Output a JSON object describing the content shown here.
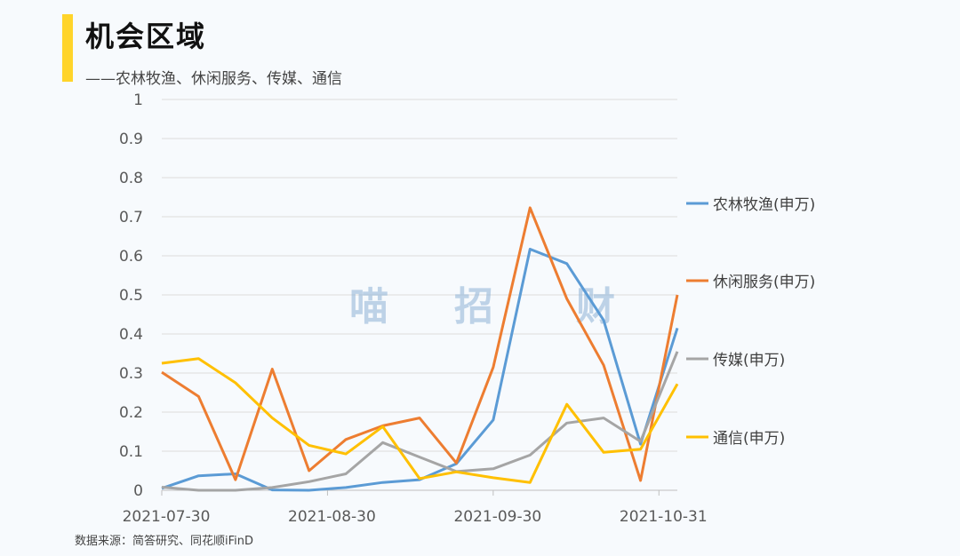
{
  "header": {
    "title": "机会区域",
    "subtitle": "——农林牧渔、休闲服务、传媒、通信"
  },
  "footer": {
    "source": "数据来源：简答研究、同花顺iFinD"
  },
  "watermark": [
    "喵",
    "招",
    "财"
  ],
  "chart_data": {
    "type": "line",
    "title": "",
    "xlabel": "",
    "ylabel": "",
    "ylim": [
      0,
      1
    ],
    "y_ticks": [
      "0",
      "0.1",
      "0.2",
      "0.3",
      "0.4",
      "0.5",
      "0.6",
      "0.7",
      "0.8",
      "0.9",
      "1"
    ],
    "x_tick_labels": [
      "2021-07-30",
      "2021-08-30",
      "2021-09-30",
      "2021-10-31"
    ],
    "x_tick_indices": [
      0,
      4.5,
      9,
      13.5
    ],
    "grid": "horizontal",
    "legend_position": "right",
    "series": [
      {
        "name": "农林牧渔(申万)",
        "color": "#5b9bd5",
        "values": [
          0.005,
          0.037,
          0.042,
          0.001,
          0.0,
          0.007,
          0.02,
          0.027,
          0.068,
          0.18,
          0.617,
          0.58,
          0.435,
          0.118,
          0.415
        ]
      },
      {
        "name": "休闲服务(申万)",
        "color": "#ed7d31",
        "values": [
          0.302,
          0.24,
          0.027,
          0.31,
          0.05,
          0.13,
          0.165,
          0.185,
          0.07,
          0.315,
          0.723,
          0.49,
          0.32,
          0.025,
          0.5
        ]
      },
      {
        "name": "传媒(申万)",
        "color": "#a5a5a5",
        "values": [
          0.008,
          0.0,
          0.0,
          0.007,
          0.022,
          0.042,
          0.122,
          0.085,
          0.048,
          0.055,
          0.09,
          0.172,
          0.185,
          0.125,
          0.355
        ]
      },
      {
        "name": "通信(申万)",
        "color": "#ffc000",
        "values": [
          0.325,
          0.337,
          0.275,
          0.185,
          0.115,
          0.093,
          0.163,
          0.03,
          0.047,
          0.032,
          0.02,
          0.22,
          0.097,
          0.105,
          0.272
        ]
      }
    ]
  }
}
